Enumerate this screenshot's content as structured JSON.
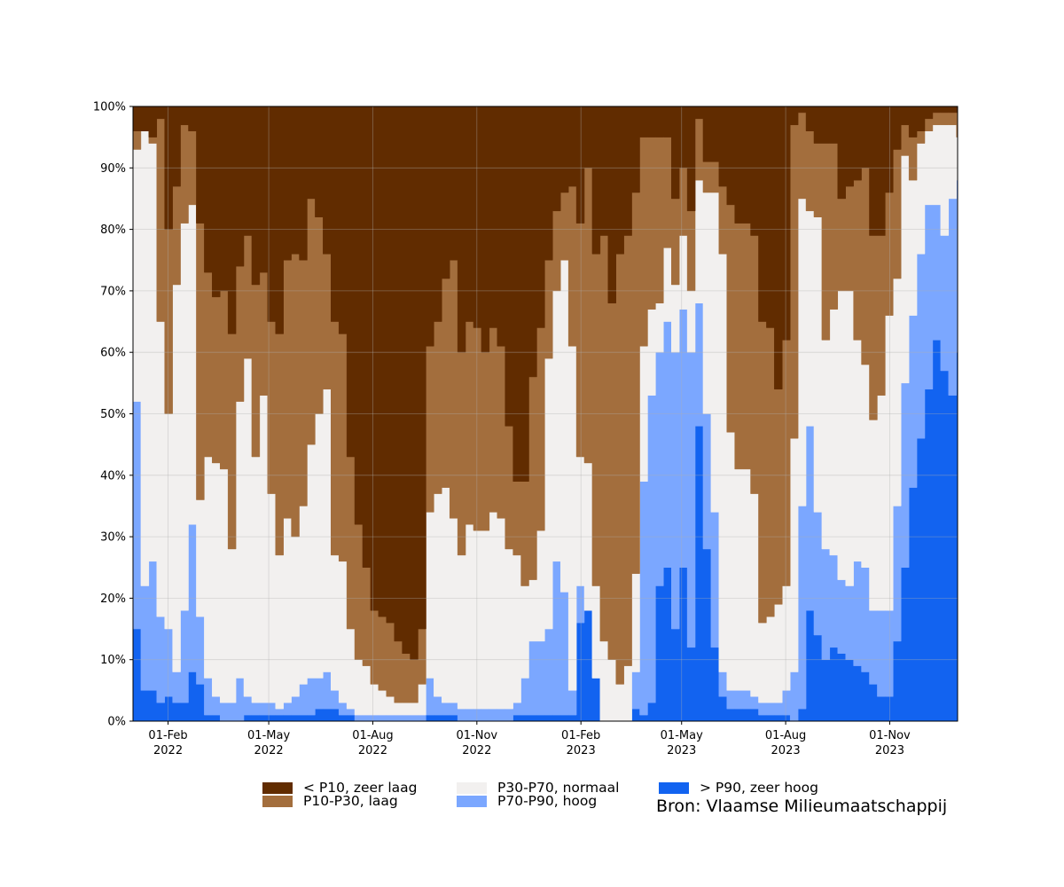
{
  "chart_data": {
    "type": "area",
    "stacked": true,
    "grid": true,
    "legend_position": "bottom",
    "ylim": [
      0,
      100
    ],
    "yticks": [
      "0%",
      "10%",
      "20%",
      "30%",
      "40%",
      "50%",
      "60%",
      "70%",
      "80%",
      "90%",
      "100%"
    ],
    "xticks": [
      {
        "month": "01-Feb",
        "year": "2022",
        "date": "2022-02-01"
      },
      {
        "month": "01-May",
        "year": "2022",
        "date": "2022-05-01"
      },
      {
        "month": "01-Aug",
        "year": "2022",
        "date": "2022-08-01"
      },
      {
        "month": "01-Nov",
        "year": "2022",
        "date": "2022-11-01"
      },
      {
        "month": "01-Feb",
        "year": "2023",
        "date": "2023-02-01"
      },
      {
        "month": "01-May",
        "year": "2023",
        "date": "2023-05-01"
      },
      {
        "month": "01-Aug",
        "year": "2023",
        "date": "2023-08-01"
      },
      {
        "month": "01-Nov",
        "year": "2023",
        "date": "2023-11-01"
      }
    ],
    "x": [
      "2022-01-01",
      "2022-01-08",
      "2022-01-15",
      "2022-01-22",
      "2022-01-29",
      "2022-02-05",
      "2022-02-12",
      "2022-02-19",
      "2022-02-26",
      "2022-03-05",
      "2022-03-12",
      "2022-03-19",
      "2022-03-26",
      "2022-04-02",
      "2022-04-09",
      "2022-04-16",
      "2022-04-23",
      "2022-04-30",
      "2022-05-07",
      "2022-05-14",
      "2022-05-21",
      "2022-05-28",
      "2022-06-04",
      "2022-06-11",
      "2022-06-18",
      "2022-06-25",
      "2022-07-02",
      "2022-07-09",
      "2022-07-16",
      "2022-07-23",
      "2022-07-30",
      "2022-08-06",
      "2022-08-13",
      "2022-08-20",
      "2022-08-27",
      "2022-09-03",
      "2022-09-10",
      "2022-09-17",
      "2022-09-24",
      "2022-10-01",
      "2022-10-08",
      "2022-10-15",
      "2022-10-22",
      "2022-10-29",
      "2022-11-05",
      "2022-11-12",
      "2022-11-19",
      "2022-11-26",
      "2022-12-03",
      "2022-12-10",
      "2022-12-17",
      "2022-12-24",
      "2022-12-31",
      "2023-01-07",
      "2023-01-14",
      "2023-01-21",
      "2023-01-28",
      "2023-02-04",
      "2023-02-11",
      "2023-02-18",
      "2023-02-25",
      "2023-03-04",
      "2023-03-11",
      "2023-03-18",
      "2023-03-25",
      "2023-04-01",
      "2023-04-08",
      "2023-04-15",
      "2023-04-22",
      "2023-04-29",
      "2023-05-06",
      "2023-05-13",
      "2023-05-20",
      "2023-05-27",
      "2023-06-03",
      "2023-06-10",
      "2023-06-17",
      "2023-06-24",
      "2023-07-01",
      "2023-07-08",
      "2023-07-15",
      "2023-07-22",
      "2023-07-29",
      "2023-08-05",
      "2023-08-12",
      "2023-08-19",
      "2023-08-26",
      "2023-09-02",
      "2023-09-09",
      "2023-09-16",
      "2023-09-23",
      "2023-09-30",
      "2023-10-07",
      "2023-10-14",
      "2023-10-21",
      "2023-10-28",
      "2023-11-04",
      "2023-11-11",
      "2023-11-18",
      "2023-11-25",
      "2023-12-02",
      "2023-12-09",
      "2023-12-16",
      "2023-12-23",
      "2023-12-30"
    ],
    "series": [
      {
        "name": "> P90, zeer hoog",
        "color": "#1263f0",
        "values": [
          15,
          5,
          5,
          3,
          4,
          3,
          3,
          8,
          6,
          1,
          1,
          0,
          0,
          0,
          1,
          1,
          1,
          1,
          1,
          1,
          1,
          1,
          1,
          2,
          2,
          2,
          1,
          1,
          0,
          0,
          0,
          0,
          0,
          0,
          0,
          0,
          0,
          1,
          1,
          1,
          1,
          0,
          0,
          0,
          0,
          0,
          0,
          0,
          1,
          1,
          1,
          1,
          1,
          1,
          1,
          1,
          16,
          18,
          7,
          0,
          0,
          0,
          0,
          2,
          1,
          3,
          22,
          25,
          15,
          25,
          12,
          48,
          28,
          12,
          4,
          2,
          2,
          2,
          2,
          1,
          1,
          1,
          1,
          0,
          2,
          18,
          14,
          10,
          12,
          11,
          10,
          9,
          8,
          6,
          4,
          4,
          13,
          25,
          38,
          46,
          54,
          62,
          57,
          53,
          60
        ]
      },
      {
        "name": "P70-P90, hoog",
        "color": "#7ba7ff",
        "values": [
          37,
          17,
          21,
          14,
          11,
          5,
          15,
          24,
          11,
          6,
          3,
          3,
          3,
          7,
          3,
          2,
          2,
          2,
          1,
          2,
          3,
          5,
          6,
          5,
          6,
          3,
          2,
          1,
          1,
          1,
          1,
          1,
          1,
          1,
          1,
          1,
          1,
          6,
          3,
          2,
          2,
          2,
          2,
          2,
          2,
          2,
          2,
          2,
          2,
          6,
          12,
          12,
          14,
          25,
          20,
          4,
          6,
          0,
          0,
          0,
          0,
          0,
          0,
          6,
          38,
          50,
          38,
          40,
          45,
          42,
          48,
          20,
          22,
          22,
          4,
          3,
          3,
          3,
          2,
          2,
          2,
          2,
          4,
          8,
          33,
          30,
          20,
          18,
          15,
          12,
          12,
          17,
          17,
          12,
          14,
          14,
          22,
          30,
          28,
          30,
          30,
          22,
          22,
          32,
          28
        ]
      },
      {
        "name": "P30-P70, normaal",
        "color": "#f2f0ef",
        "values": [
          41,
          74,
          68,
          48,
          35,
          63,
          63,
          52,
          19,
          36,
          38,
          38,
          25,
          45,
          55,
          40,
          50,
          34,
          25,
          30,
          26,
          29,
          38,
          43,
          46,
          22,
          23,
          13,
          9,
          8,
          5,
          4,
          3,
          2,
          2,
          2,
          5,
          27,
          33,
          35,
          30,
          25,
          30,
          29,
          29,
          32,
          31,
          26,
          24,
          15,
          10,
          18,
          44,
          44,
          54,
          56,
          21,
          24,
          15,
          13,
          10,
          6,
          9,
          16,
          22,
          14,
          8,
          12,
          11,
          12,
          10,
          20,
          36,
          52,
          68,
          42,
          36,
          36,
          33,
          13,
          14,
          16,
          17,
          38,
          50,
          35,
          48,
          34,
          40,
          47,
          48,
          36,
          33,
          31,
          35,
          48,
          37,
          37,
          22,
          18,
          12,
          13,
          18,
          12,
          7
        ]
      },
      {
        "name": "P10-P30, laag",
        "color": "#a36e3d",
        "values": [
          3,
          0,
          1,
          33,
          30,
          16,
          16,
          12,
          45,
          30,
          27,
          29,
          35,
          22,
          20,
          28,
          20,
          28,
          36,
          42,
          46,
          40,
          40,
          32,
          22,
          38,
          37,
          28,
          22,
          16,
          12,
          12,
          12,
          10,
          8,
          7,
          9,
          27,
          28,
          34,
          42,
          33,
          33,
          33,
          29,
          30,
          28,
          20,
          12,
          17,
          33,
          33,
          16,
          13,
          11,
          26,
          38,
          48,
          54,
          66,
          58,
          70,
          70,
          62,
          34,
          28,
          27,
          18,
          14,
          11,
          13,
          10,
          5,
          5,
          11,
          37,
          40,
          40,
          42,
          49,
          47,
          35,
          40,
          51,
          14,
          13,
          12,
          32,
          27,
          15,
          17,
          26,
          32,
          30,
          26,
          20,
          21,
          5,
          7,
          2,
          2,
          2,
          2,
          2,
          4
        ]
      },
      {
        "name": "< P10, zeer laag",
        "color": "#612c00",
        "values": [
          4,
          4,
          5,
          2,
          20,
          13,
          3,
          4,
          19,
          27,
          31,
          30,
          37,
          26,
          21,
          29,
          27,
          35,
          37,
          25,
          24,
          25,
          15,
          18,
          24,
          35,
          37,
          57,
          68,
          75,
          82,
          83,
          84,
          87,
          89,
          90,
          85,
          39,
          35,
          28,
          25,
          40,
          35,
          36,
          40,
          36,
          39,
          52,
          61,
          61,
          45,
          36,
          25,
          17,
          14,
          13,
          19,
          10,
          24,
          21,
          32,
          24,
          21,
          14,
          5,
          5,
          5,
          5,
          15,
          10,
          17,
          2,
          9,
          9,
          13,
          16,
          19,
          19,
          21,
          35,
          36,
          46,
          38,
          3,
          1,
          4,
          6,
          6,
          6,
          15,
          13,
          12,
          10,
          21,
          21,
          14,
          7,
          3,
          5,
          4,
          2,
          1,
          1,
          1,
          1
        ]
      }
    ]
  },
  "legend": [
    {
      "label": "< P10, zeer laag",
      "color": "#612c00"
    },
    {
      "label": "P10-P30, laag",
      "color": "#a36e3d"
    },
    {
      "label": "P30-P70, normaal",
      "color": "#f2f0ef"
    },
    {
      "label": "P70-P90, hoog",
      "color": "#7ba7ff"
    },
    {
      "label": "> P90, zeer hoog",
      "color": "#1263f0"
    }
  ],
  "source": "Bron: Vlaamse Milieumaatschappij"
}
